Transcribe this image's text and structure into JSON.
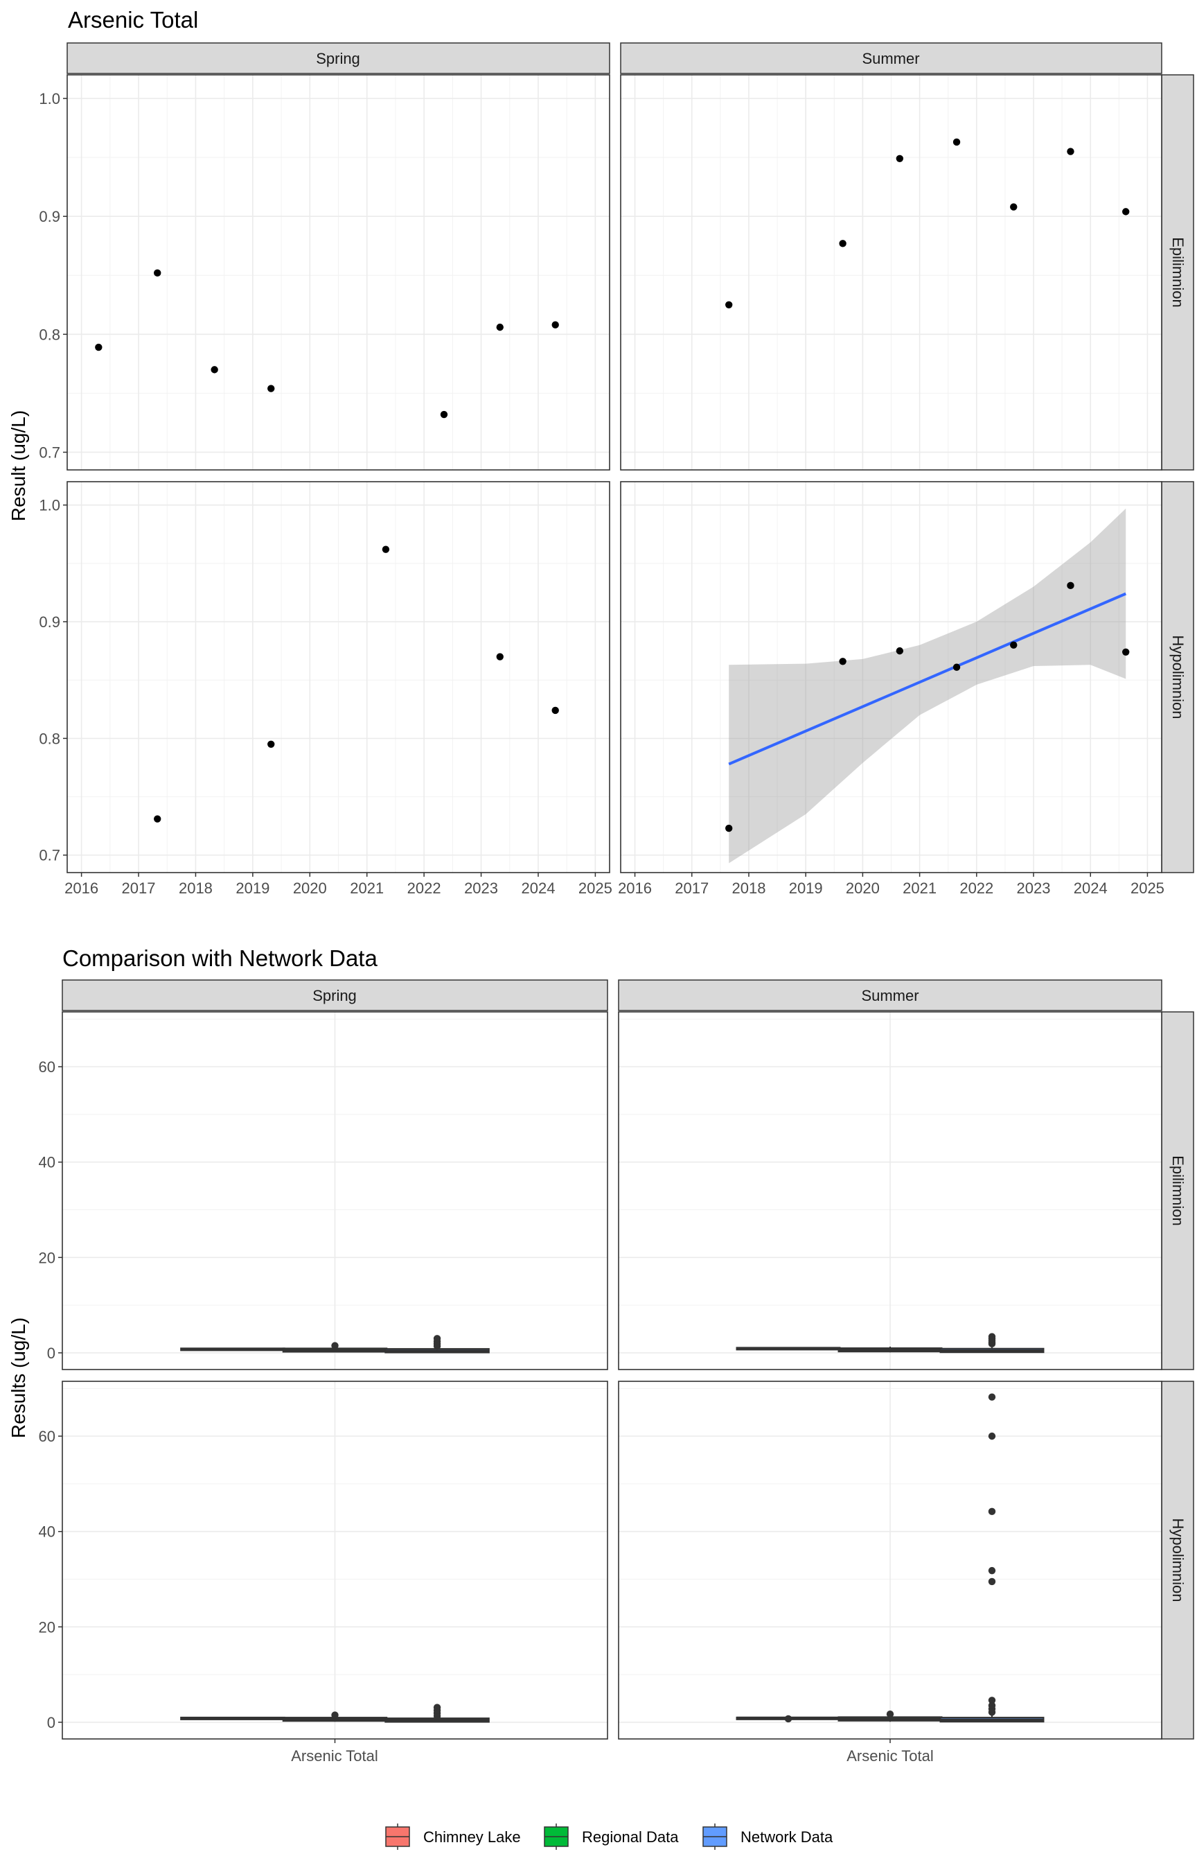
{
  "chart_data": [
    {
      "type": "scatter",
      "title": "Arsenic Total",
      "ylabel": "Result (ug/L)",
      "xlabel": "",
      "facet_columns": [
        "Spring",
        "Summer"
      ],
      "facet_rows": [
        "Epilimnion",
        "Hypolimnion"
      ],
      "xlim": [
        2015.75,
        2025.25
      ],
      "ylim": [
        0.685,
        1.02
      ],
      "x_ticks": [
        "2016",
        "2017",
        "2018",
        "2019",
        "2020",
        "2021",
        "2022",
        "2023",
        "2024",
        "2025"
      ],
      "y_ticks": [
        "0.7",
        "0.8",
        "0.9",
        "1.0"
      ],
      "y_tick_values": [
        0.7,
        0.8,
        0.9,
        1.0
      ],
      "grid": true,
      "panels": [
        {
          "season": "Spring",
          "layer": "Epilimnion",
          "points": [
            {
              "x": 2016.3,
              "y": 0.789
            },
            {
              "x": 2017.33,
              "y": 0.852
            },
            {
              "x": 2018.33,
              "y": 0.77
            },
            {
              "x": 2019.32,
              "y": 0.754
            },
            {
              "x": 2022.35,
              "y": 0.732
            },
            {
              "x": 2023.33,
              "y": 0.806
            },
            {
              "x": 2024.3,
              "y": 0.808
            }
          ]
        },
        {
          "season": "Summer",
          "layer": "Epilimnion",
          "points": [
            {
              "x": 2017.65,
              "y": 0.825
            },
            {
              "x": 2019.65,
              "y": 0.877
            },
            {
              "x": 2020.65,
              "y": 0.949
            },
            {
              "x": 2021.65,
              "y": 0.963
            },
            {
              "x": 2022.65,
              "y": 0.908
            },
            {
              "x": 2023.65,
              "y": 0.955
            },
            {
              "x": 2024.62,
              "y": 0.904
            }
          ]
        },
        {
          "season": "Spring",
          "layer": "Hypolimnion",
          "points": [
            {
              "x": 2017.33,
              "y": 0.731
            },
            {
              "x": 2019.32,
              "y": 0.795
            },
            {
              "x": 2021.33,
              "y": 0.962
            },
            {
              "x": 2023.33,
              "y": 0.87
            },
            {
              "x": 2024.3,
              "y": 0.824
            }
          ]
        },
        {
          "season": "Summer",
          "layer": "Hypolimnion",
          "points": [
            {
              "x": 2017.65,
              "y": 0.723
            },
            {
              "x": 2019.65,
              "y": 0.866
            },
            {
              "x": 2020.65,
              "y": 0.875
            },
            {
              "x": 2021.65,
              "y": 0.861
            },
            {
              "x": 2022.65,
              "y": 0.88
            },
            {
              "x": 2023.65,
              "y": 0.931
            },
            {
              "x": 2024.62,
              "y": 0.874
            }
          ],
          "trend": {
            "x_start": 2017.65,
            "y_start": 0.778,
            "x_end": 2024.62,
            "y_end": 0.924
          },
          "confidence_band": {
            "x": [
              2017.65,
              2019.0,
              2020.0,
              2021.0,
              2022.0,
              2023.0,
              2024.0,
              2024.62
            ],
            "upper": [
              0.863,
              0.864,
              0.868,
              0.88,
              0.9,
              0.93,
              0.968,
              0.997
            ],
            "lower": [
              0.693,
              0.735,
              0.779,
              0.82,
              0.846,
              0.862,
              0.863,
              0.851
            ]
          }
        }
      ]
    },
    {
      "type": "box",
      "title": "Comparison with Network Data",
      "ylabel": "Results (ug/L)",
      "facet_columns": [
        "Spring",
        "Summer"
      ],
      "facet_rows": [
        "Epilimnion",
        "Hypolimnion"
      ],
      "ylim": [
        -3.5,
        71.5
      ],
      "y_ticks": [
        "0",
        "20",
        "40",
        "60"
      ],
      "y_tick_values": [
        0,
        20,
        40,
        60
      ],
      "x_category": "Arsenic Total",
      "legend": {
        "position": "bottom",
        "entries": [
          {
            "label": "Chimney Lake",
            "color": "#F8766D"
          },
          {
            "label": "Regional Data",
            "color": "#00BA38"
          },
          {
            "label": "Network Data",
            "color": "#619CFF"
          }
        ]
      },
      "panels": [
        {
          "season": "Spring",
          "layer": "Epilimnion",
          "boxes": [
            {
              "group": "Chimney Lake",
              "median": 0.78,
              "q1": 0.75,
              "q3": 0.81,
              "whisker_low": 0.73,
              "whisker_high": 0.85,
              "outliers": []
            },
            {
              "group": "Regional Data",
              "median": 0.55,
              "q1": 0.35,
              "q3": 0.8,
              "whisker_low": 0.1,
              "whisker_high": 1.2,
              "outliers": [
                1.5
              ]
            },
            {
              "group": "Network Data",
              "median": 0.4,
              "q1": 0.2,
              "q3": 0.7,
              "whisker_low": 0.05,
              "whisker_high": 1.1,
              "outliers": [
                1.4,
                1.9,
                2.4,
                3.0
              ]
            }
          ]
        },
        {
          "season": "Summer",
          "layer": "Epilimnion",
          "boxes": [
            {
              "group": "Chimney Lake",
              "median": 0.91,
              "q1": 0.87,
              "q3": 0.95,
              "whisker_low": 0.82,
              "whisker_high": 0.96,
              "outliers": []
            },
            {
              "group": "Regional Data",
              "median": 0.6,
              "q1": 0.4,
              "q3": 0.85,
              "whisker_low": 0.1,
              "whisker_high": 1.3,
              "outliers": []
            },
            {
              "group": "Network Data",
              "median": 0.45,
              "q1": 0.25,
              "q3": 0.75,
              "whisker_low": 0.05,
              "whisker_high": 1.2,
              "outliers": [
                1.9,
                2.2,
                2.6,
                3.0,
                3.4
              ]
            }
          ]
        },
        {
          "season": "Spring",
          "layer": "Hypolimnion",
          "boxes": [
            {
              "group": "Chimney Lake",
              "median": 0.82,
              "q1": 0.79,
              "q3": 0.87,
              "whisker_low": 0.73,
              "whisker_high": 0.96,
              "outliers": []
            },
            {
              "group": "Regional Data",
              "median": 0.6,
              "q1": 0.4,
              "q3": 0.85,
              "whisker_low": 0.1,
              "whisker_high": 1.2,
              "outliers": [
                1.5
              ]
            },
            {
              "group": "Network Data",
              "median": 0.45,
              "q1": 0.2,
              "q3": 0.7,
              "whisker_low": 0.05,
              "whisker_high": 1.1,
              "outliers": [
                1.3,
                1.9,
                2.5,
                3.1
              ]
            }
          ]
        },
        {
          "season": "Summer",
          "layer": "Hypolimnion",
          "boxes": [
            {
              "group": "Chimney Lake",
              "median": 0.87,
              "q1": 0.86,
              "q3": 0.88,
              "whisker_low": 0.72,
              "whisker_high": 0.93,
              "outliers": [
                0.72
              ]
            },
            {
              "group": "Regional Data",
              "median": 0.7,
              "q1": 0.45,
              "q3": 0.95,
              "whisker_low": 0.1,
              "whisker_high": 1.4,
              "outliers": [
                1.7
              ]
            },
            {
              "group": "Network Data",
              "median": 0.5,
              "q1": 0.25,
              "q3": 0.85,
              "whisker_low": 0.05,
              "whisker_high": 1.5,
              "outliers": [
                2.1,
                2.8,
                3.5,
                4.6,
                29.5,
                31.8,
                44.2,
                60.0,
                68.2
              ]
            }
          ]
        }
      ]
    }
  ]
}
